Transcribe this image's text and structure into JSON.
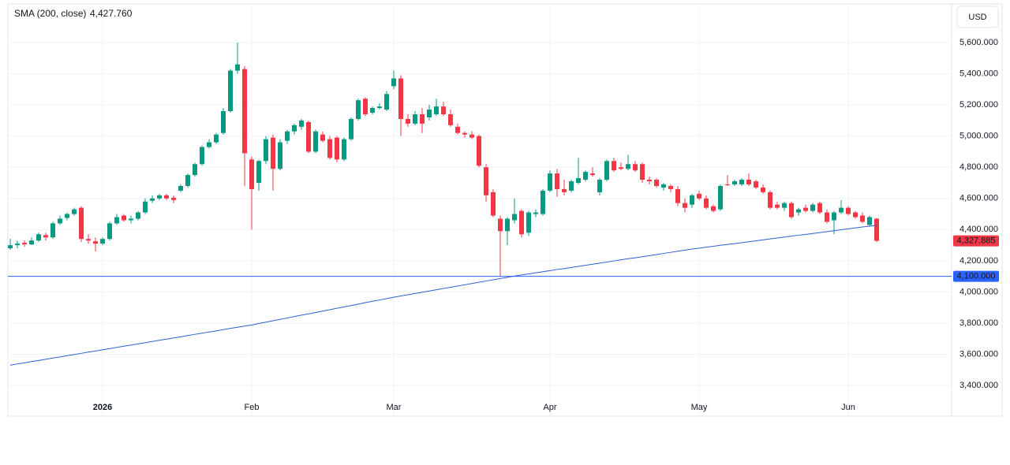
{
  "chart_data": {
    "type": "candlestick",
    "currency": "USD",
    "categories": [
      null,
      null,
      null,
      null,
      null,
      null,
      null,
      null,
      null,
      null,
      null,
      null,
      null,
      "2026",
      null,
      null,
      null,
      null,
      null,
      null,
      null,
      null,
      null,
      null,
      null,
      null,
      null,
      null,
      null,
      null,
      null,
      null,
      null,
      null,
      "Feb",
      null,
      null,
      null,
      null,
      null,
      null,
      null,
      null,
      null,
      null,
      null,
      null,
      null,
      null,
      null,
      null,
      null,
      null,
      null,
      "Mar",
      null,
      null,
      null,
      null,
      null,
      null,
      null,
      null,
      null,
      null,
      null,
      null,
      null,
      null,
      null,
      null,
      null,
      null,
      null,
      null,
      null,
      "Apr",
      null,
      null,
      null,
      null,
      null,
      null,
      null,
      null,
      null,
      null,
      null,
      null,
      null,
      null,
      null,
      null,
      null,
      null,
      null,
      null,
      "May",
      null,
      null,
      null,
      null,
      null,
      null,
      null,
      null,
      null,
      null,
      null,
      null,
      null,
      null,
      null,
      null,
      null,
      null,
      null,
      null,
      "Jun",
      null,
      null,
      null,
      null
    ],
    "open": [
      4280,
      4300,
      4315,
      4305,
      4330,
      4365,
      4350,
      4440,
      4475,
      4500,
      4540,
      4340,
      4325,
      4310,
      4340,
      4440,
      4490,
      4460,
      4470,
      4510,
      4585,
      4600,
      4620,
      4605,
      4650,
      4680,
      4750,
      4820,
      4930,
      4960,
      5020,
      5160,
      5420,
      5430,
      4850,
      4700,
      4840,
      4990,
      4790,
      4970,
      5030,
      5060,
      5090,
      4900,
      5010,
      4980,
      4990,
      4850,
      4980,
      5110,
      5240,
      5150,
      5180,
      5170,
      5320,
      5370,
      5110,
      5080,
      5140,
      5120,
      5140,
      5190,
      5140,
      5060,
      5020,
      5010,
      5000,
      4800,
      4640,
      4470,
      4390,
      4460,
      4520,
      4380,
      4500,
      4500,
      4650,
      4760,
      4660,
      4650,
      4700,
      4720,
      4760,
      4640,
      4720,
      4840,
      4800,
      4790,
      4820,
      4820,
      4720,
      4720,
      4670,
      4680,
      4660,
      4570,
      4560,
      4630,
      4600,
      4550,
      4530,
      4690,
      4690,
      4690,
      4720,
      4710,
      4670,
      4640,
      4560,
      4540,
      4570,
      4510,
      4540,
      4520,
      4570,
      4510,
      4460,
      4510,
      4540,
      4510,
      4490,
      4430,
      4470
    ],
    "high": [
      4340,
      4330,
      4330,
      4350,
      4380,
      4380,
      4450,
      4490,
      4510,
      4540,
      4550,
      4370,
      4350,
      4350,
      4450,
      4500,
      4500,
      4490,
      4520,
      4600,
      4620,
      4630,
      4630,
      4620,
      4690,
      4760,
      4830,
      4940,
      4980,
      5020,
      5180,
      5430,
      5600,
      5450,
      4870,
      4850,
      5000,
      5010,
      4980,
      5040,
      5080,
      5110,
      5100,
      5040,
      5030,
      5000,
      5000,
      4990,
      5120,
      5240,
      5250,
      5190,
      5210,
      5290,
      5420,
      5390,
      5140,
      5160,
      5180,
      5200,
      5240,
      5220,
      5170,
      5080,
      5030,
      5030,
      5010,
      4820,
      4660,
      4490,
      4480,
      4600,
      4530,
      4520,
      4530,
      4660,
      4780,
      4790,
      4720,
      4720,
      4860,
      4780,
      4800,
      4730,
      4850,
      4860,
      4830,
      4880,
      4840,
      4830,
      4740,
      4730,
      4700,
      4690,
      4680,
      4600,
      4630,
      4650,
      4620,
      4560,
      4690,
      4750,
      4720,
      4730,
      4760,
      4720,
      4690,
      4650,
      4580,
      4580,
      4580,
      4540,
      4560,
      4570,
      4580,
      4530,
      4520,
      4590,
      4550,
      4520,
      4510,
      4490,
      4475
    ],
    "low": [
      4270,
      4280,
      4290,
      4300,
      4320,
      4330,
      4340,
      4430,
      4460,
      4490,
      4320,
      4310,
      4260,
      4300,
      4330,
      4430,
      4450,
      4440,
      4460,
      4500,
      4570,
      4590,
      4590,
      4570,
      4640,
      4670,
      4740,
      4810,
      4920,
      4950,
      5010,
      5150,
      5400,
      4680,
      4400,
      4650,
      4820,
      4650,
      4780,
      4950,
      5010,
      5040,
      4890,
      4890,
      4960,
      4850,
      4830,
      4840,
      4970,
      5100,
      5130,
      5140,
      5170,
      5160,
      5300,
      5000,
      5060,
      5070,
      5020,
      5100,
      5130,
      5130,
      5060,
      5010,
      4990,
      4980,
      4800,
      4580,
      4480,
      4100,
      4300,
      4440,
      4350,
      4360,
      4480,
      4490,
      4640,
      4610,
      4620,
      4640,
      4690,
      4710,
      4740,
      4620,
      4710,
      4770,
      4780,
      4780,
      4770,
      4700,
      4690,
      4670,
      4650,
      4640,
      4550,
      4510,
      4540,
      4590,
      4530,
      4510,
      4520,
      4680,
      4680,
      4680,
      4680,
      4660,
      4630,
      4530,
      4530,
      4520,
      4470,
      4490,
      4510,
      4510,
      4500,
      4440,
      4370,
      4500,
      4490,
      4470,
      4440,
      4420,
      4320
    ],
    "close": [
      4300,
      4310,
      4305,
      4330,
      4370,
      4350,
      4440,
      4470,
      4500,
      4530,
      4340,
      4330,
      4310,
      4340,
      4440,
      4480,
      4460,
      4470,
      4510,
      4580,
      4600,
      4620,
      4600,
      4590,
      4680,
      4750,
      4820,
      4930,
      4960,
      5010,
      5160,
      5420,
      5460,
      4890,
      4660,
      4840,
      4980,
      4790,
      4960,
      5030,
      5070,
      5100,
      4900,
      5030,
      4970,
      4860,
      4850,
      4980,
      5110,
      5230,
      5140,
      5180,
      5190,
      5270,
      5370,
      5110,
      5080,
      5140,
      5080,
      5170,
      5190,
      5140,
      5070,
      5020,
      5010,
      4990,
      4810,
      4620,
      4490,
      4390,
      4470,
      4500,
      4370,
      4510,
      4510,
      4650,
      4760,
      4660,
      4640,
      4710,
      4730,
      4770,
      4750,
      4720,
      4840,
      4780,
      4790,
      4820,
      4780,
      4720,
      4710,
      4680,
      4690,
      4660,
      4570,
      4540,
      4620,
      4600,
      4540,
      4520,
      4680,
      4685,
      4710,
      4720,
      4690,
      4670,
      4640,
      4540,
      4540,
      4570,
      4480,
      4530,
      4520,
      4560,
      4510,
      4450,
      4510,
      4540,
      4500,
      4480,
      4450,
      4480,
      4327.885
    ],
    "last_price_label": "4,327.885",
    "up_color": "#089981",
    "down_color": "#f23645",
    "series": [
      {
        "name": "SMA (200, close)",
        "color": "#2f5fd0",
        "legend_value": "4,427.760",
        "values": [
          3530,
          3538,
          3545,
          3553,
          3560,
          3568,
          3576,
          3583,
          3591,
          3598,
          3606,
          3614,
          3621,
          3629,
          3636,
          3644,
          3652,
          3659,
          3667,
          3674,
          3682,
          3690,
          3697,
          3705,
          3712,
          3720,
          3728,
          3735,
          3743,
          3750,
          3758,
          3766,
          3773,
          3781,
          3788,
          3797,
          3806,
          3815,
          3824,
          3833,
          3842,
          3851,
          3859,
          3868,
          3877,
          3886,
          3895,
          3904,
          3913,
          3922,
          3931,
          3940,
          3948,
          3957,
          3966,
          3974,
          3982,
          3990,
          3998,
          4006,
          4014,
          4022,
          4030,
          4038,
          4046,
          4054,
          4062,
          4070,
          4078,
          4086,
          4094,
          4102,
          4109,
          4116,
          4123,
          4130,
          4137,
          4144,
          4150,
          4157,
          4164,
          4171,
          4178,
          4185,
          4192,
          4199,
          4206,
          4213,
          4219,
          4226,
          4233,
          4240,
          4247,
          4254,
          4261,
          4268,
          4275,
          4281,
          4287,
          4293,
          4299,
          4305,
          4310,
          4316,
          4322,
          4328,
          4334,
          4340,
          4346,
          4352,
          4358,
          4364,
          4369,
          4375,
          4381,
          4387,
          4393,
          4399,
          4405,
          4411,
          4417,
          4422,
          4427.76
        ]
      }
    ],
    "hline": {
      "value": 4100,
      "label": "4,100.000",
      "color": "#2962ff"
    },
    "ylim": [
      3203,
      5848
    ],
    "yticks": [
      {
        "value": 3400,
        "label": "3,400.000"
      },
      {
        "value": 3600,
        "label": "3,600.000"
      },
      {
        "value": 3800,
        "label": "3,800.000"
      },
      {
        "value": 4000,
        "label": "4,000.000"
      },
      {
        "value": 4200,
        "label": "4,200.000"
      },
      {
        "value": 4400,
        "label": "4,400.000"
      },
      {
        "value": 4600,
        "label": "4,600.000"
      },
      {
        "value": 4800,
        "label": "4,800.000"
      },
      {
        "value": 5000,
        "label": "5,000.000"
      },
      {
        "value": 5200,
        "label": "5,200.000"
      },
      {
        "value": 5400,
        "label": "5,400.000"
      },
      {
        "value": 5600,
        "label": "5,600.000"
      }
    ],
    "grid": true
  }
}
